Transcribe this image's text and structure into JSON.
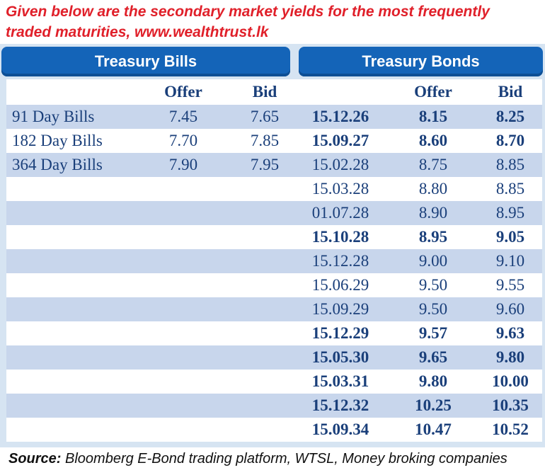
{
  "caption": {
    "line1": "Given below are the secondary market yields for the most frequently",
    "line2": "traded maturities, www.wealthtrust.lk"
  },
  "headers": {
    "bills": "Treasury Bills",
    "bonds": "Treasury Bonds"
  },
  "columns": {
    "bills_offer": "Offer",
    "bills_bid": "Bid",
    "bonds_offer": "Offer",
    "bonds_bid": "Bid"
  },
  "rows": [
    {
      "bill": "91 Day Bills",
      "bill_offer": "7.45",
      "bill_bid": "7.65",
      "date": "15.12.26",
      "offer": "8.15",
      "bid": "8.25",
      "bold": true
    },
    {
      "bill": "182 Day Bills",
      "bill_offer": "7.70",
      "bill_bid": "7.85",
      "date": "15.09.27",
      "offer": "8.60",
      "bid": "8.70",
      "bold": true
    },
    {
      "bill": "364 Day Bills",
      "bill_offer": "7.90",
      "bill_bid": "7.95",
      "date": "15.02.28",
      "offer": "8.75",
      "bid": "8.85",
      "bold": false
    },
    {
      "bill": "",
      "bill_offer": "",
      "bill_bid": "",
      "date": "15.03.28",
      "offer": "8.80",
      "bid": "8.85",
      "bold": false
    },
    {
      "bill": "",
      "bill_offer": "",
      "bill_bid": "",
      "date": "01.07.28",
      "offer": "8.90",
      "bid": "8.95",
      "bold": false
    },
    {
      "bill": "",
      "bill_offer": "",
      "bill_bid": "",
      "date": "15.10.28",
      "offer": "8.95",
      "bid": "9.05",
      "bold": true
    },
    {
      "bill": "",
      "bill_offer": "",
      "bill_bid": "",
      "date": "15.12.28",
      "offer": "9.00",
      "bid": "9.10",
      "bold": false
    },
    {
      "bill": "",
      "bill_offer": "",
      "bill_bid": "",
      "date": "15.06.29",
      "offer": "9.50",
      "bid": "9.55",
      "bold": false
    },
    {
      "bill": "",
      "bill_offer": "",
      "bill_bid": "",
      "date": "15.09.29",
      "offer": "9.50",
      "bid": "9.60",
      "bold": false
    },
    {
      "bill": "",
      "bill_offer": "",
      "bill_bid": "",
      "date": "15.12.29",
      "offer": "9.57",
      "bid": "9.63",
      "bold": true
    },
    {
      "bill": "",
      "bill_offer": "",
      "bill_bid": "",
      "date": "15.05.30",
      "offer": "9.65",
      "bid": "9.80",
      "bold": true
    },
    {
      "bill": "",
      "bill_offer": "",
      "bill_bid": "",
      "date": "15.03.31",
      "offer": "9.80",
      "bid": "10.00",
      "bold": true
    },
    {
      "bill": "",
      "bill_offer": "",
      "bill_bid": "",
      "date": "15.12.32",
      "offer": "10.25",
      "bid": "10.35",
      "bold": true
    },
    {
      "bill": "",
      "bill_offer": "",
      "bill_bid": "",
      "date": "15.09.34",
      "offer": "10.47",
      "bid": "10.52",
      "bold": true
    }
  ],
  "source": {
    "label": "Source:",
    "text": " Bloomberg E-Bond trading platform, WTSL, Money broking companies"
  },
  "colors": {
    "caption": "#e0202a",
    "header_bg": "#1464b8",
    "row_shade": "#c8d6ec",
    "text": "#1a3f7a"
  }
}
